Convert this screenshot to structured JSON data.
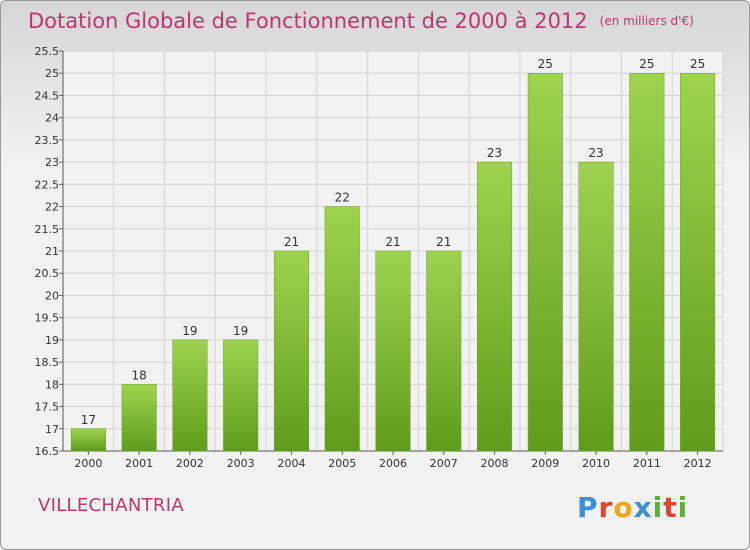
{
  "chart_data": {
    "type": "bar",
    "title": "Dotation Globale de Fonctionnement de 2000 à 2012",
    "subtitle": "(en milliers d'€)",
    "categories": [
      "2000",
      "2001",
      "2002",
      "2003",
      "2004",
      "2005",
      "2006",
      "2007",
      "2008",
      "2009",
      "2010",
      "2011",
      "2012"
    ],
    "values": [
      17,
      18,
      19,
      19,
      21,
      22,
      21,
      21,
      23,
      25,
      23,
      25,
      25
    ],
    "ylim": [
      16.5,
      25.5
    ],
    "yticks": [
      "16.5",
      "17",
      "17.5",
      "18",
      "18.5",
      "19",
      "19.5",
      "20",
      "20.5",
      "21",
      "21.5",
      "22",
      "22.5",
      "23",
      "23.5",
      "24",
      "24.5",
      "25",
      "25.5"
    ],
    "grid": true,
    "bar_color": "#7cbb2c",
    "title_color": "#c0356d"
  },
  "footer": {
    "commune": "VILLECHANTRIA",
    "logo": [
      "P",
      "r",
      "o",
      "x",
      "i",
      "t",
      "i"
    ]
  }
}
